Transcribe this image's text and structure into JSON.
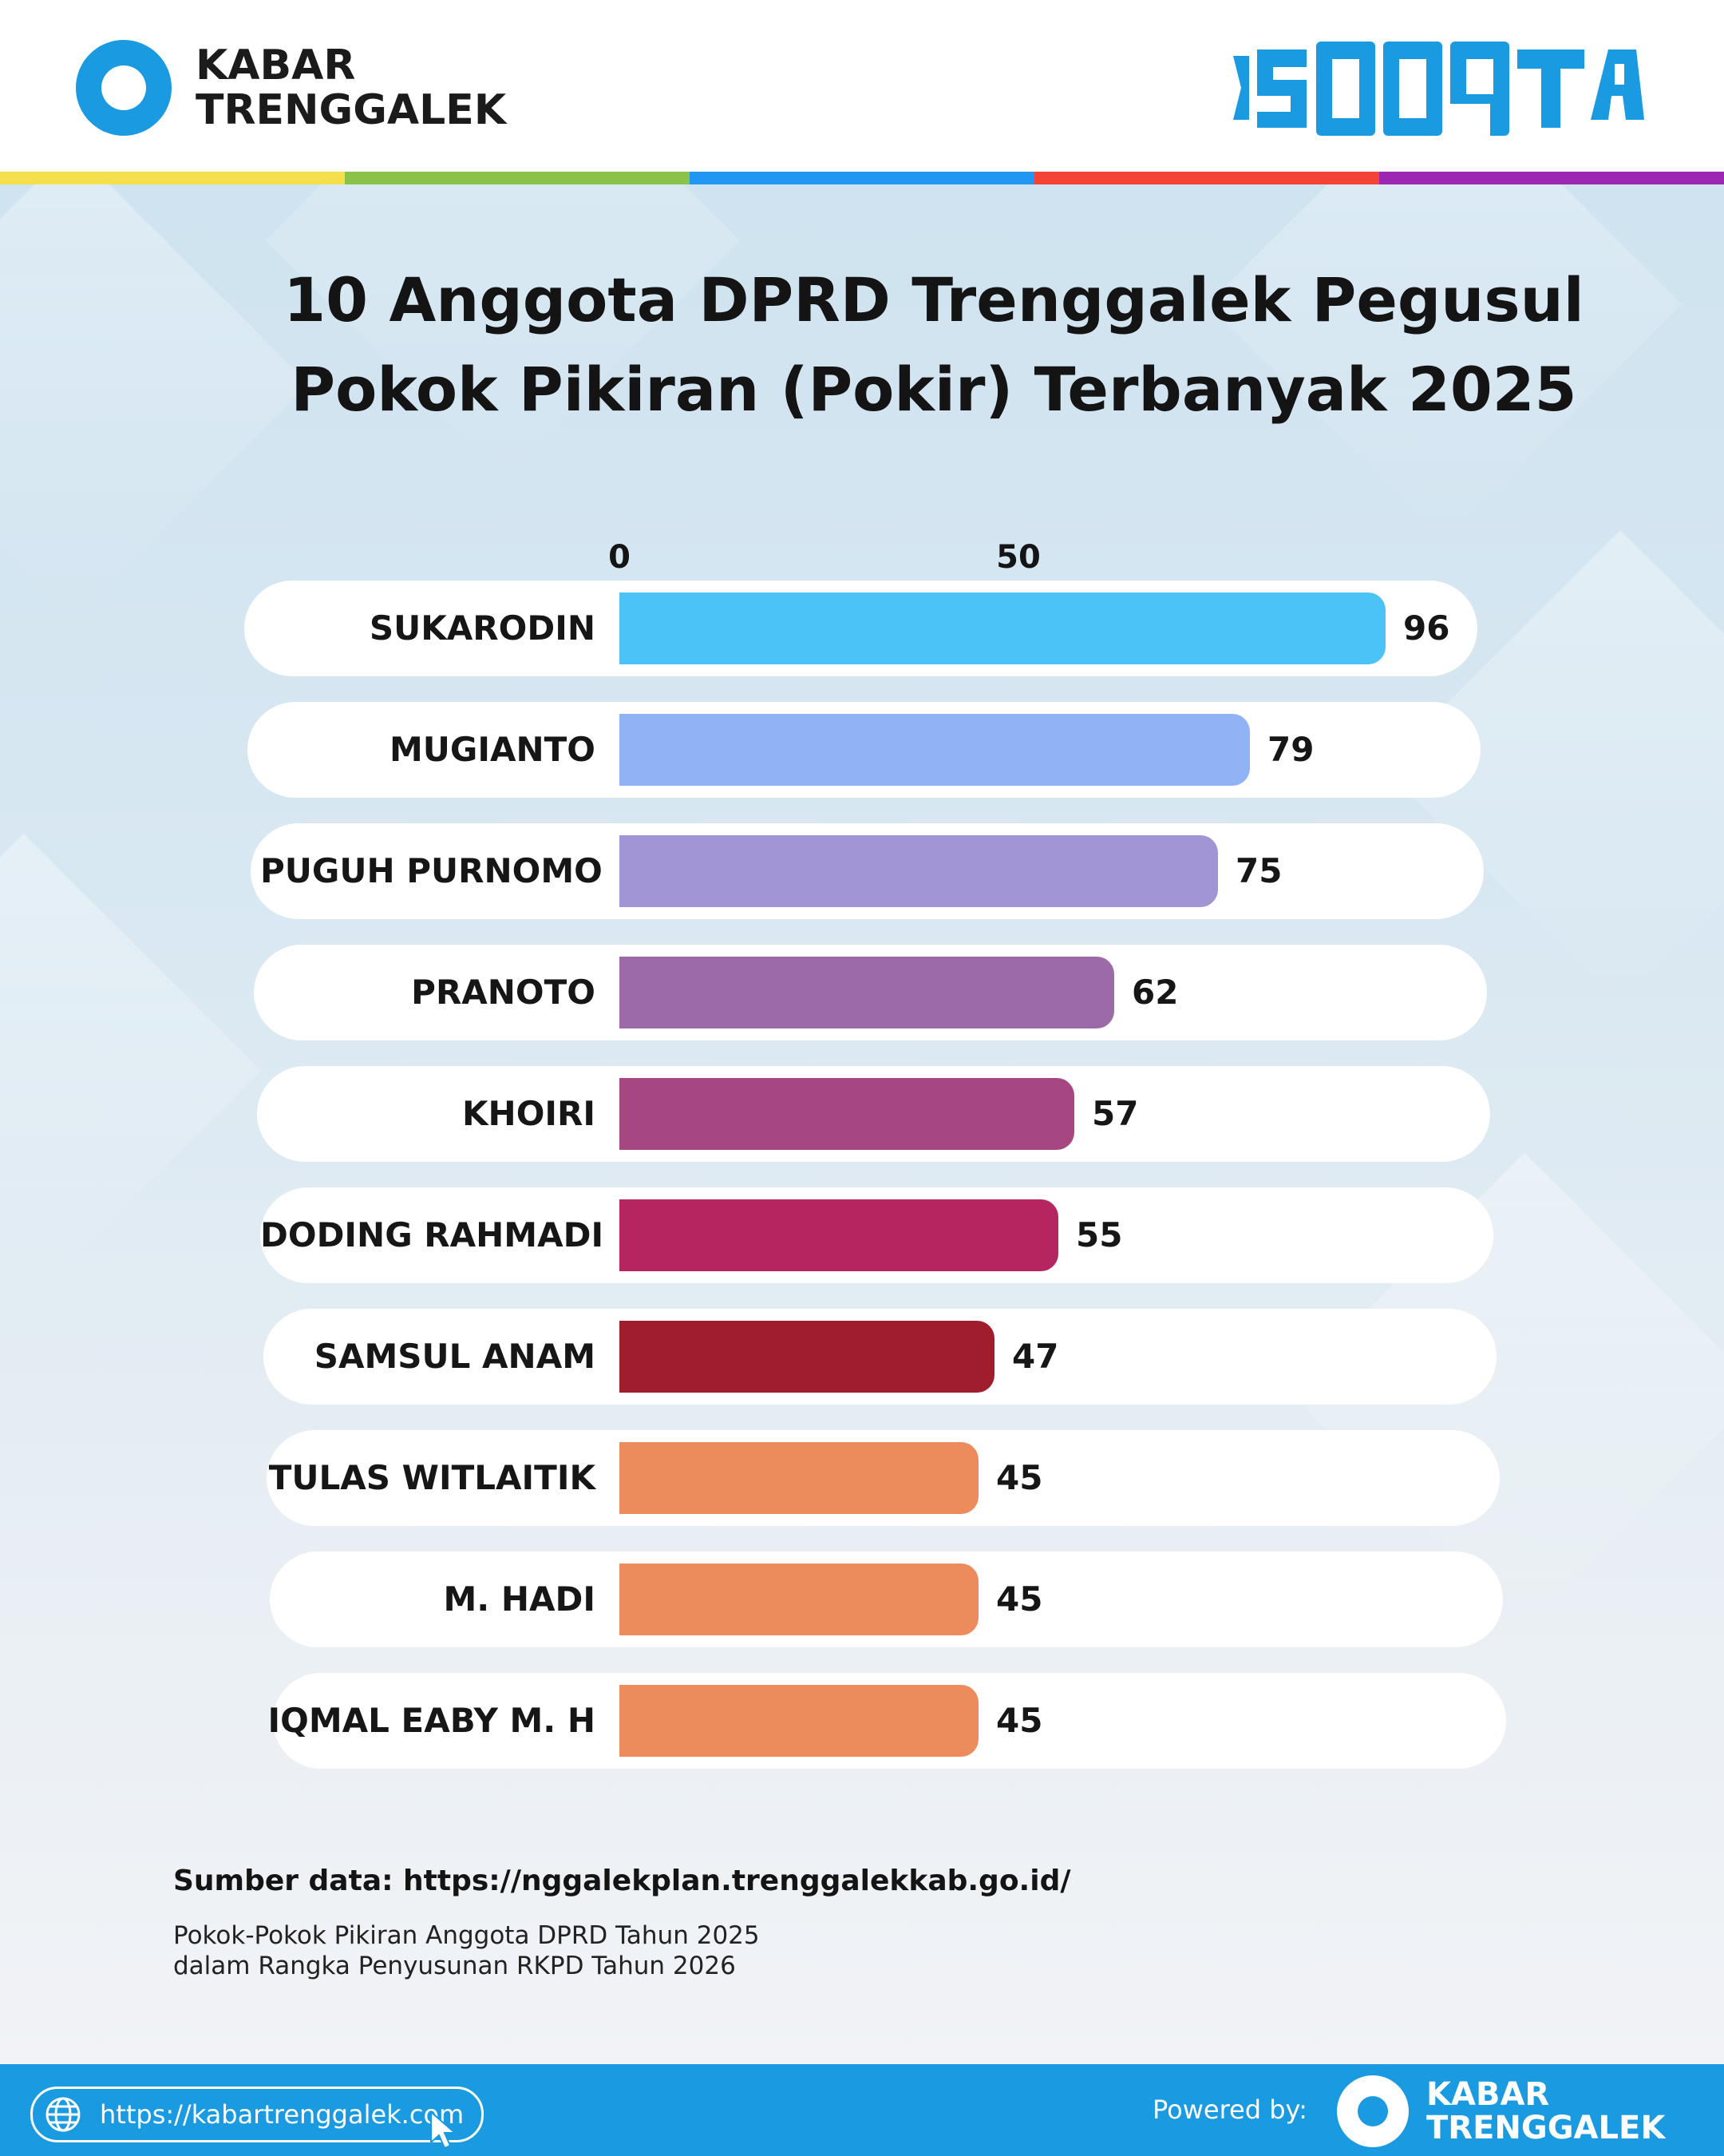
{
  "brand": {
    "line1": "KABAR",
    "line2": "TRENGGALEK",
    "partner_logo": "ISODATA"
  },
  "rainbow_colors": [
    "#f4e04d",
    "#8bc34a",
    "#2196f3",
    "#f44336",
    "#9c27b0"
  ],
  "title": {
    "line1": "10 Anggota DPRD Trenggalek Pegusul",
    "line2": "Pokok Pikiran (Pokir) Terbanyak 2025"
  },
  "chart_data": {
    "type": "bar",
    "orientation": "horizontal",
    "title": "10 Anggota DPRD Trenggalek Pegusul Pokok Pikiran (Pokir) Terbanyak 2025",
    "categories": [
      "SUKARODIN",
      "MUGIANTO",
      "PUGUH PURNOMO",
      "PRANOTO",
      "KHOIRI",
      "DODING RAHMADI",
      "SAMSUL ANAM",
      "TULAS WITLAITIK",
      "M. HADI",
      "IQMAL EABY M. H"
    ],
    "values": [
      96,
      79,
      75,
      62,
      57,
      55,
      47,
      45,
      45,
      45
    ],
    "bar_colors": [
      "#4cc3f7",
      "#8fb3f5",
      "#a195d5",
      "#9b6aa7",
      "#a74781",
      "#b5255f",
      "#a01d2e",
      "#ec8c5d",
      "#ec8c5d",
      "#ec8c5d"
    ],
    "x_ticks": [
      "0",
      "50"
    ],
    "xlim": [
      0,
      100
    ],
    "grid": false,
    "legend": "none"
  },
  "source": {
    "label": "Sumber data: https://nggalekplan.trenggalekkab.go.id/",
    "note_line1": "Pokok-Pokok Pikiran Anggota DPRD Tahun 2025",
    "note_line2": "dalam Rangka Penyusunan RKPD Tahun 2026"
  },
  "footer": {
    "url": "https://kabartrenggalek.com",
    "powered_by": "Powered by:",
    "logo_line1": "KABAR",
    "logo_line2": "TRENGGALEK"
  }
}
